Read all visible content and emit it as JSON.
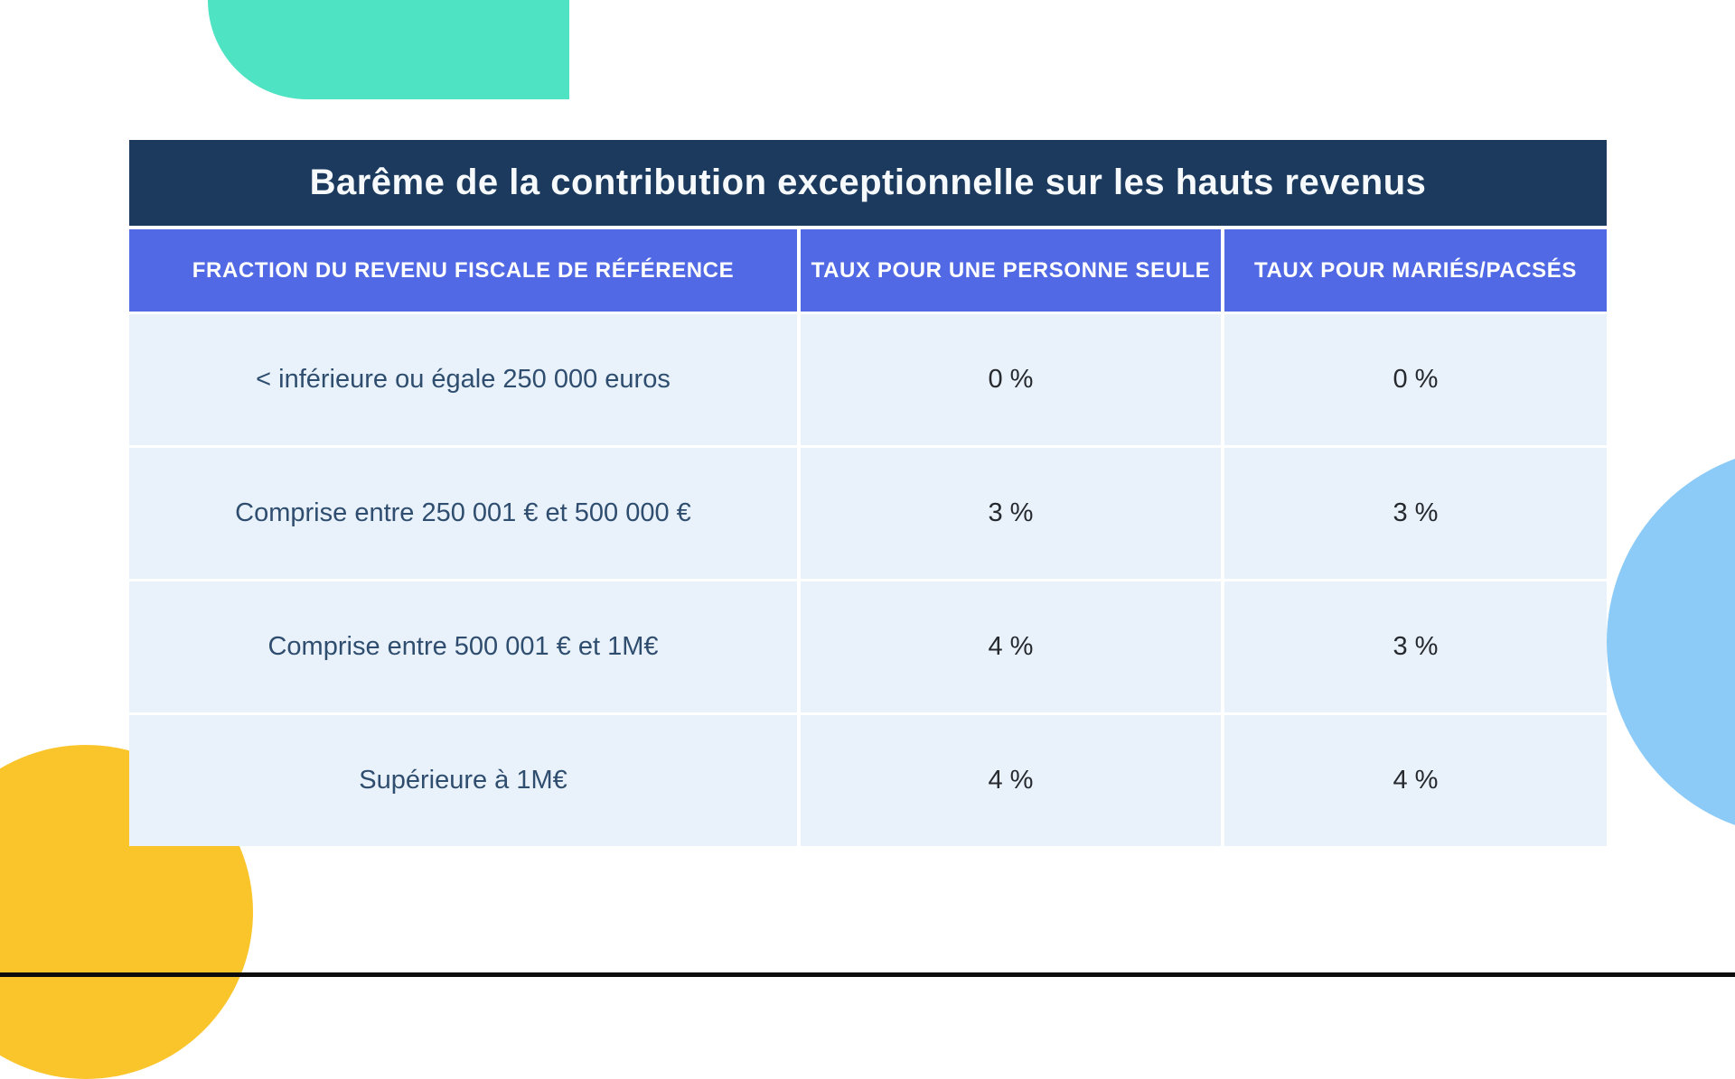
{
  "table": {
    "title": "Barême de la contribution exceptionnelle sur les hauts revenus",
    "columns": [
      "FRACTION DU REVENU FISCALE DE RÉFÉRENCE",
      "TAUX POUR UNE PERSONNE SEULE",
      "TAUX POUR MARIÉS/PACSÉS"
    ],
    "rows": [
      [
        "< inférieure ou égale 250 000 euros",
        "0 %",
        "0 %"
      ],
      [
        "Comprise entre 250 001 € et 500 000 €",
        "3 %",
        "3 %"
      ],
      [
        "Comprise entre 500 001 € et 1M€",
        "4 %",
        "3 %"
      ],
      [
        "Supérieure à 1M€",
        "4 %",
        "4 %"
      ]
    ]
  },
  "colors": {
    "title_bar": "#1c3a5e",
    "header_row": "#5169e4",
    "body_row": "#e9f2fb",
    "fraction_text": "#2f4d6e",
    "rate_text": "#26292e",
    "teal_shape": "#4ee3c2",
    "blue_circle": "#8ccbf7",
    "yellow_circle": "#fac42b",
    "bottom_bar": "#0c0c0c",
    "background": "#ffffff"
  },
  "chart_data": {
    "type": "table",
    "title": "Barême de la contribution exceptionnelle sur les hauts revenus",
    "columns": [
      "FRACTION DU REVENU FISCALE DE RÉFÉRENCE",
      "TAUX POUR UNE PERSONNE SEULE",
      "TAUX POUR MARIÉS/PACSÉS"
    ],
    "rows": [
      [
        "< inférieure ou égale 250 000 euros",
        "0 %",
        "0 %"
      ],
      [
        "Comprise entre 250 001 € et 500 000 €",
        "3 %",
        "3 %"
      ],
      [
        "Comprise entre 500 001 € et 1M€",
        "4 %",
        "3 %"
      ],
      [
        "Supérieure à 1M€",
        "4 %",
        "4 %"
      ]
    ],
    "rates_numeric": {
      "single_person_pct": [
        0,
        3,
        4,
        4
      ],
      "married_pacs_pct": [
        0,
        3,
        3,
        4
      ]
    }
  }
}
